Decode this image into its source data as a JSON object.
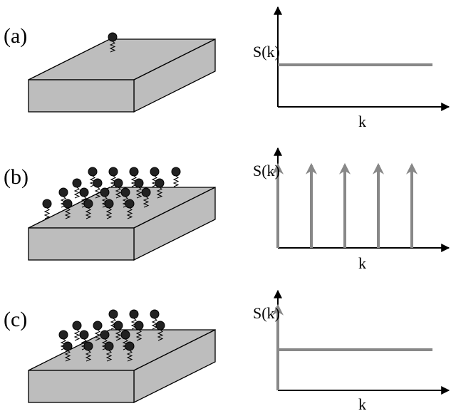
{
  "panels": [
    {
      "label": "(a)",
      "y_axis_label": "S(k)",
      "x_axis_label": "k"
    },
    {
      "label": "(b)",
      "y_axis_label": "S(k)",
      "x_axis_label": "k"
    },
    {
      "label": "(c)",
      "y_axis_label": "S(k)",
      "x_axis_label": "k"
    }
  ]
}
